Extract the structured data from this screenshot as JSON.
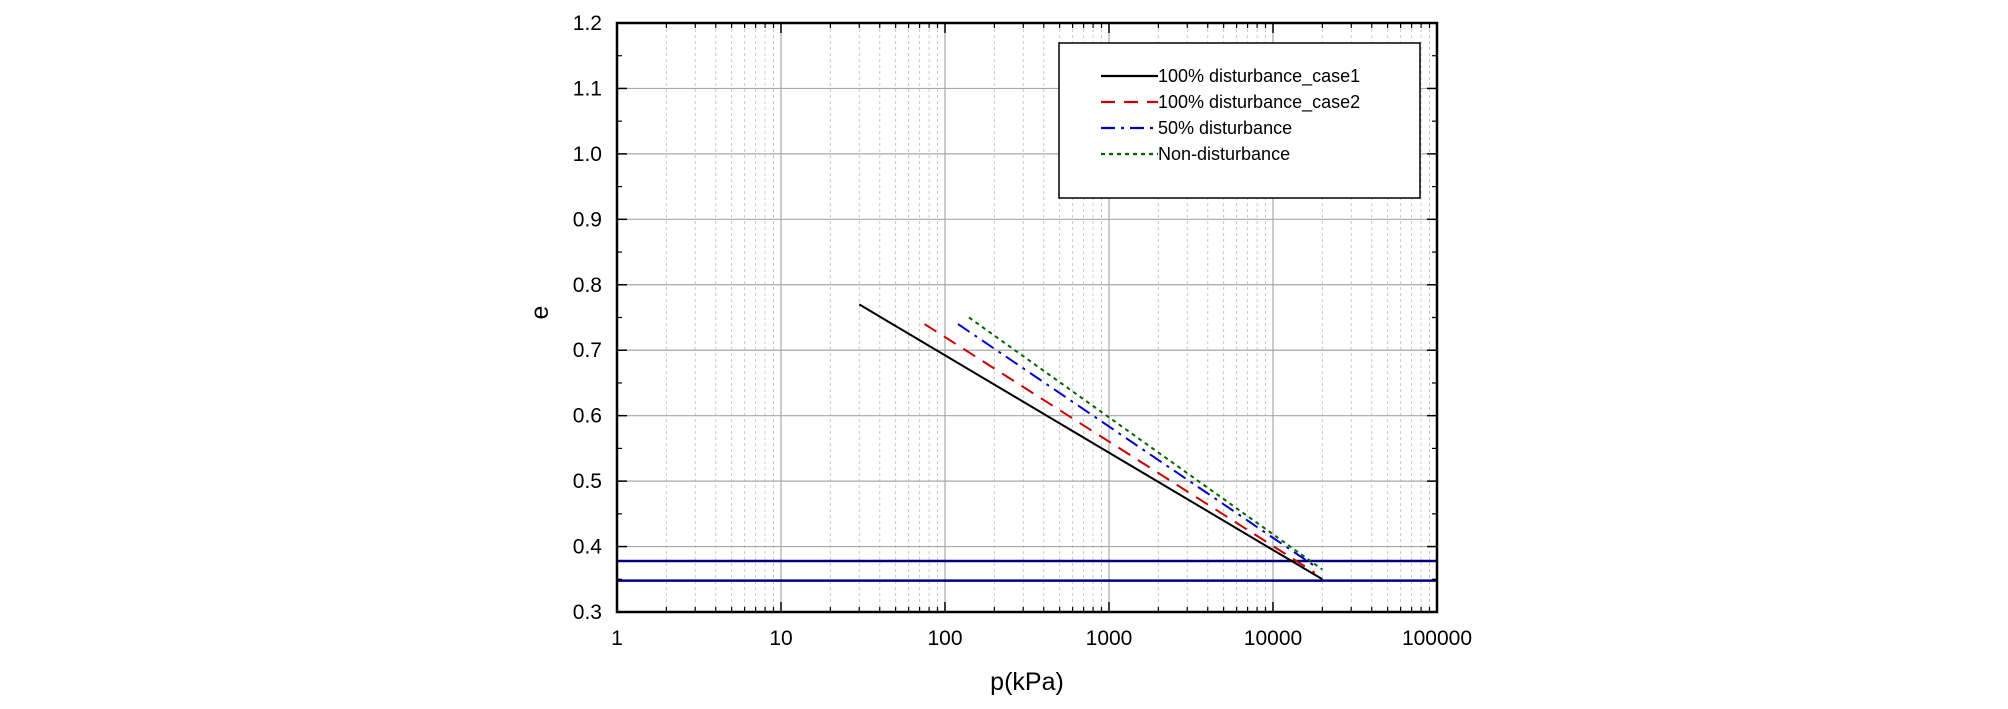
{
  "chart_data": {
    "type": "line",
    "xlabel": "p(kPa)",
    "ylabel": "e",
    "xscale": "log",
    "xlim": [
      1,
      100000
    ],
    "ylim": [
      0.3,
      1.2
    ],
    "xticks": [
      1,
      10,
      100,
      1000,
      10000,
      100000
    ],
    "xtick_labels": [
      "1",
      "10",
      "100",
      "1000",
      "10000",
      "100000"
    ],
    "yticks": [
      0.3,
      0.4,
      0.5,
      0.6,
      0.7,
      0.8,
      0.9,
      1.0,
      1.1,
      1.2
    ],
    "ytick_labels": [
      "0.3",
      "0.4",
      "0.5",
      "0.6",
      "0.7",
      "0.8",
      "0.9",
      "1.0",
      "1.1",
      "1.2"
    ],
    "grid": true,
    "legend_position": "top-right",
    "series": [
      {
        "name": "100% disturbance_case1",
        "color": "#000000",
        "style": "solid",
        "x": [
          30,
          20000
        ],
        "y": [
          0.77,
          0.35
        ]
      },
      {
        "name": "100% disturbance_case2",
        "color": "#cc0000",
        "style": "dashed",
        "x": [
          75,
          18000
        ],
        "y": [
          0.74,
          0.36
        ]
      },
      {
        "name": "50% disturbance",
        "color": "#0000cc",
        "style": "dashdot",
        "x": [
          120,
          18000
        ],
        "y": [
          0.74,
          0.37
        ]
      },
      {
        "name": "Non-disturbance",
        "color": "#006600",
        "style": "dotted",
        "x": [
          140,
          20000
        ],
        "y": [
          0.75,
          0.365
        ]
      }
    ],
    "reference_lines": [
      {
        "axis": "y",
        "value": 0.378,
        "color": "#000080"
      },
      {
        "axis": "y",
        "value": 0.348,
        "color": "#000080"
      }
    ]
  }
}
